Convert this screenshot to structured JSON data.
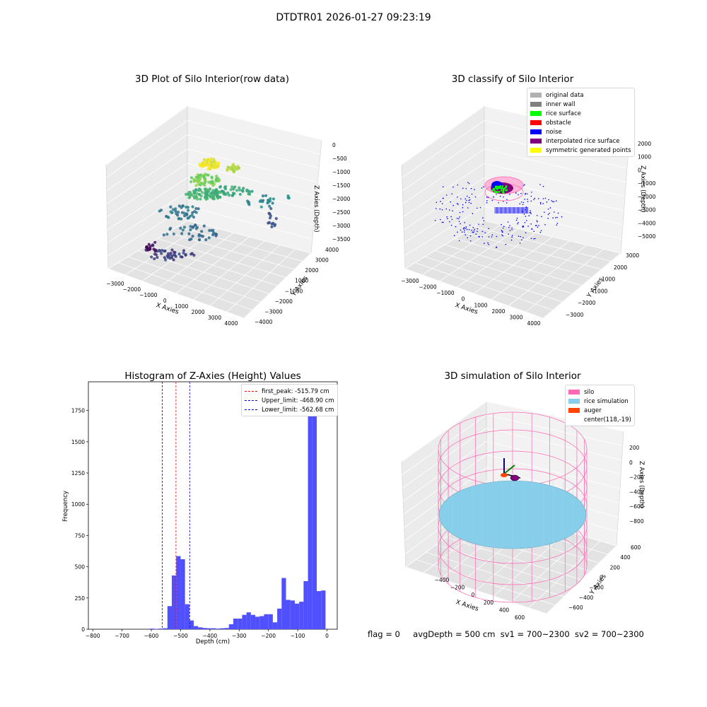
{
  "suptitle": "DTDTR01 2026-01-27 09:23:19",
  "plot1": {
    "title": "3D Plot of Silo Interior(row data)",
    "xlabel": "X Axies",
    "ylabel": "Y Axies",
    "zlabel": "Z Axies (Depth)",
    "xticks": [
      "−3000",
      "−2000",
      "−1000",
      "0",
      "1000",
      "2000",
      "3000",
      "4000"
    ],
    "yticks": [
      "4000",
      "3000",
      "2000",
      "1000",
      "−1000",
      "−2000",
      "−3000",
      "−4000"
    ],
    "zticks": [
      "0",
      "−500",
      "−1000",
      "−1500",
      "−2000",
      "−2500",
      "−3000",
      "−3500"
    ]
  },
  "plot2": {
    "title": "3D classify of Silo Interior",
    "xlabel": "X Axies",
    "ylabel": "Y Axies",
    "zlabel": "Z Axies (Depth)",
    "xticks": [
      "−3000",
      "−2000",
      "−1000",
      "0",
      "1000",
      "2000",
      "3000",
      "4000"
    ],
    "yticks": [
      "3000",
      "2000",
      "1000",
      "−1000",
      "−2000",
      "−3000"
    ],
    "zticks": [
      "2000",
      "1000",
      "0",
      "−1000",
      "−2000",
      "−3000",
      "−4000",
      "−5000"
    ],
    "legend": [
      {
        "label": "original data",
        "color": "#b0b0b0"
      },
      {
        "label": "inner wall",
        "color": "#808080"
      },
      {
        "label": "rice surface",
        "color": "#00ff00"
      },
      {
        "label": "obstacle",
        "color": "#ff0000"
      },
      {
        "label": "noise",
        "color": "#0000ff"
      },
      {
        "label": "interpolated rice surface",
        "color": "#800080"
      },
      {
        "label": "symmetric generated points",
        "color": "#ffff00"
      }
    ]
  },
  "plot4": {
    "title": "3D simulation of Silo Interior",
    "xlabel": "X Axies",
    "ylabel": "Y Axies",
    "zlabel": "Z Axies (Depth)",
    "xticks": [
      "−400",
      "−200",
      "0",
      "200",
      "400",
      "600"
    ],
    "yticks": [
      "600",
      "400",
      "200",
      "0",
      "−200",
      "−400",
      "−600"
    ],
    "zticks": [
      "200",
      "0",
      "−200",
      "−400",
      "−600",
      "−800"
    ],
    "legend": [
      {
        "label": "silo",
        "color": "#ff69b4"
      },
      {
        "label": "rice simulation",
        "color": "#87ceeb"
      },
      {
        "label": "auger",
        "color": "#ff4500"
      },
      {
        "label": "center(118,-19)",
        "color": ""
      }
    ]
  },
  "chart_data": [
    {
      "type": "bar",
      "title": "Histogram of Z-Axies (Height) Values",
      "xlabel": "Depth (cm)",
      "ylabel": "Frequency",
      "xlim": [
        -815,
        35
      ],
      "ylim": [
        0,
        1980
      ],
      "bar_color": "#5050ff",
      "xticks": [
        -800,
        -700,
        -600,
        -500,
        -400,
        -300,
        -200,
        -100,
        0
      ],
      "yticks": [
        0,
        250,
        500,
        750,
        1000,
        1250,
        1500,
        1750
      ],
      "bin_width": 15,
      "bins_start": [
        -605,
        -590,
        -575,
        -560,
        -545,
        -530,
        -515,
        -500,
        -485,
        -470,
        -455,
        -440,
        -425,
        -410,
        -395,
        -380,
        -365,
        -350,
        -335,
        -320,
        -305,
        -290,
        -275,
        -260,
        -245,
        -230,
        -215,
        -200,
        -185,
        -170,
        -155,
        -140,
        -125,
        -110,
        -95,
        -80,
        -65,
        -50,
        -35,
        -20
      ],
      "values": [
        5,
        3,
        5,
        8,
        185,
        430,
        585,
        560,
        200,
        70,
        25,
        15,
        10,
        8,
        8,
        5,
        8,
        10,
        40,
        85,
        85,
        115,
        135,
        115,
        100,
        105,
        120,
        120,
        55,
        165,
        410,
        235,
        230,
        205,
        220,
        385,
        1920,
        1870,
        305,
        310
      ],
      "vlines": [
        {
          "label": "first_peak: -515.79 cm",
          "x": -515.79,
          "color": "#ff0000"
        },
        {
          "label": "Upper_limit: -468.90 cm",
          "x": -468.9,
          "color": "#0000cc"
        },
        {
          "label": "Lower_limit: -562.68 cm",
          "x": -562.68,
          "color": "#0000cc"
        }
      ],
      "legend_position": "top-right"
    }
  ],
  "status": {
    "flag": "flag = 0",
    "avg": "avgDepth = 500 cm",
    "sv1": "sv1 = 700~2300",
    "sv2": "sv2 = 700~2300"
  }
}
